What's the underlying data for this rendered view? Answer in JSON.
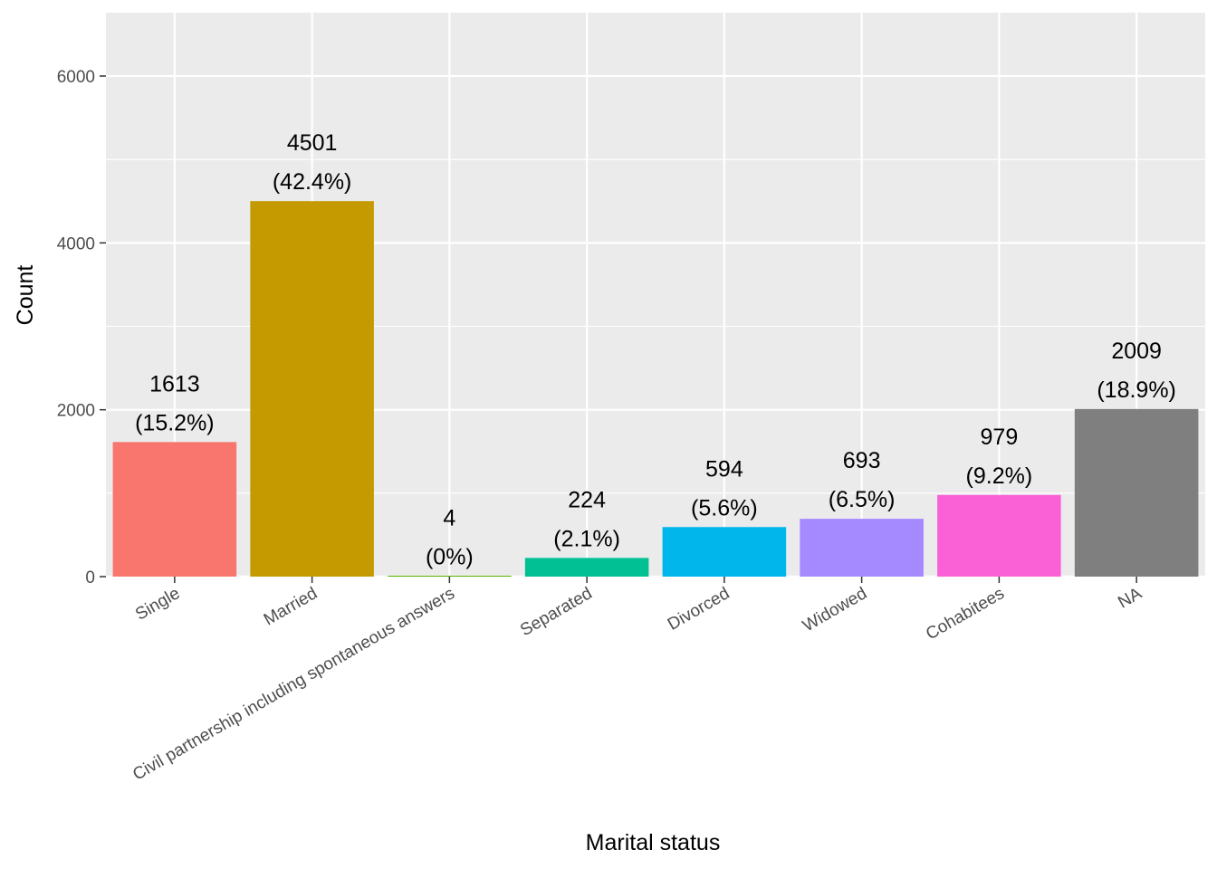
{
  "chart_data": {
    "type": "bar",
    "title": "",
    "xlabel": "Marital status",
    "ylabel": "Count",
    "ylim": [
      0,
      6700
    ],
    "yticks": [
      0,
      2000,
      4000,
      6000
    ],
    "grid": true,
    "legend": "none",
    "categories": [
      "Single",
      "Married",
      "Civil partnership including spontaneous answers",
      "Separated",
      "Divorced",
      "Widowed",
      "Cohabitees",
      "NA"
    ],
    "values": [
      1613,
      4501,
      4,
      224,
      594,
      693,
      979,
      2009
    ],
    "value_labels": [
      "1613",
      "4501",
      "4",
      "224",
      "594",
      "693",
      "979",
      "2009"
    ],
    "percent_labels": [
      "(15.2%)",
      "(42.4%)",
      "(0%)",
      "(2.1%)",
      "(5.6%)",
      "(6.5%)",
      "(9.2%)",
      "(18.9%)"
    ],
    "colors": [
      "#F8766D",
      "#C49A00",
      "#53B400",
      "#00C094",
      "#00B6EB",
      "#A58AFF",
      "#FB61D7",
      "#7F7F7F"
    ]
  }
}
